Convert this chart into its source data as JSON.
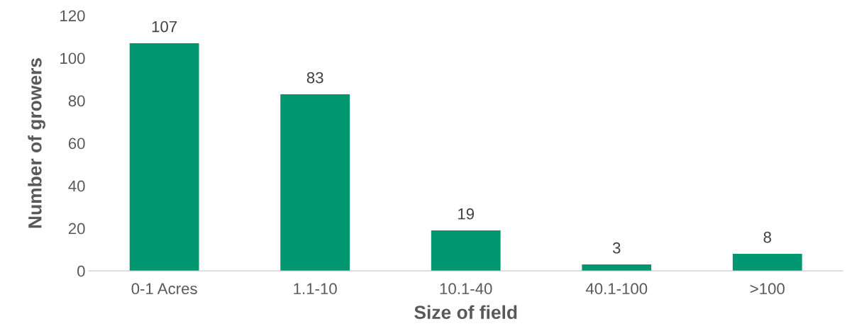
{
  "chart_data": {
    "type": "bar",
    "xlabel": "Size of field",
    "ylabel": "Number of growers",
    "categories": [
      "0-1 Acres",
      "1.1-10",
      "10.1-40",
      "40.1-100",
      ">100"
    ],
    "values": [
      107,
      83,
      19,
      3,
      8
    ],
    "color": "#009670",
    "ylim": [
      0,
      120
    ],
    "yticks": [
      0,
      20,
      40,
      60,
      80,
      100,
      120
    ],
    "grid": false,
    "data_labels": true
  }
}
